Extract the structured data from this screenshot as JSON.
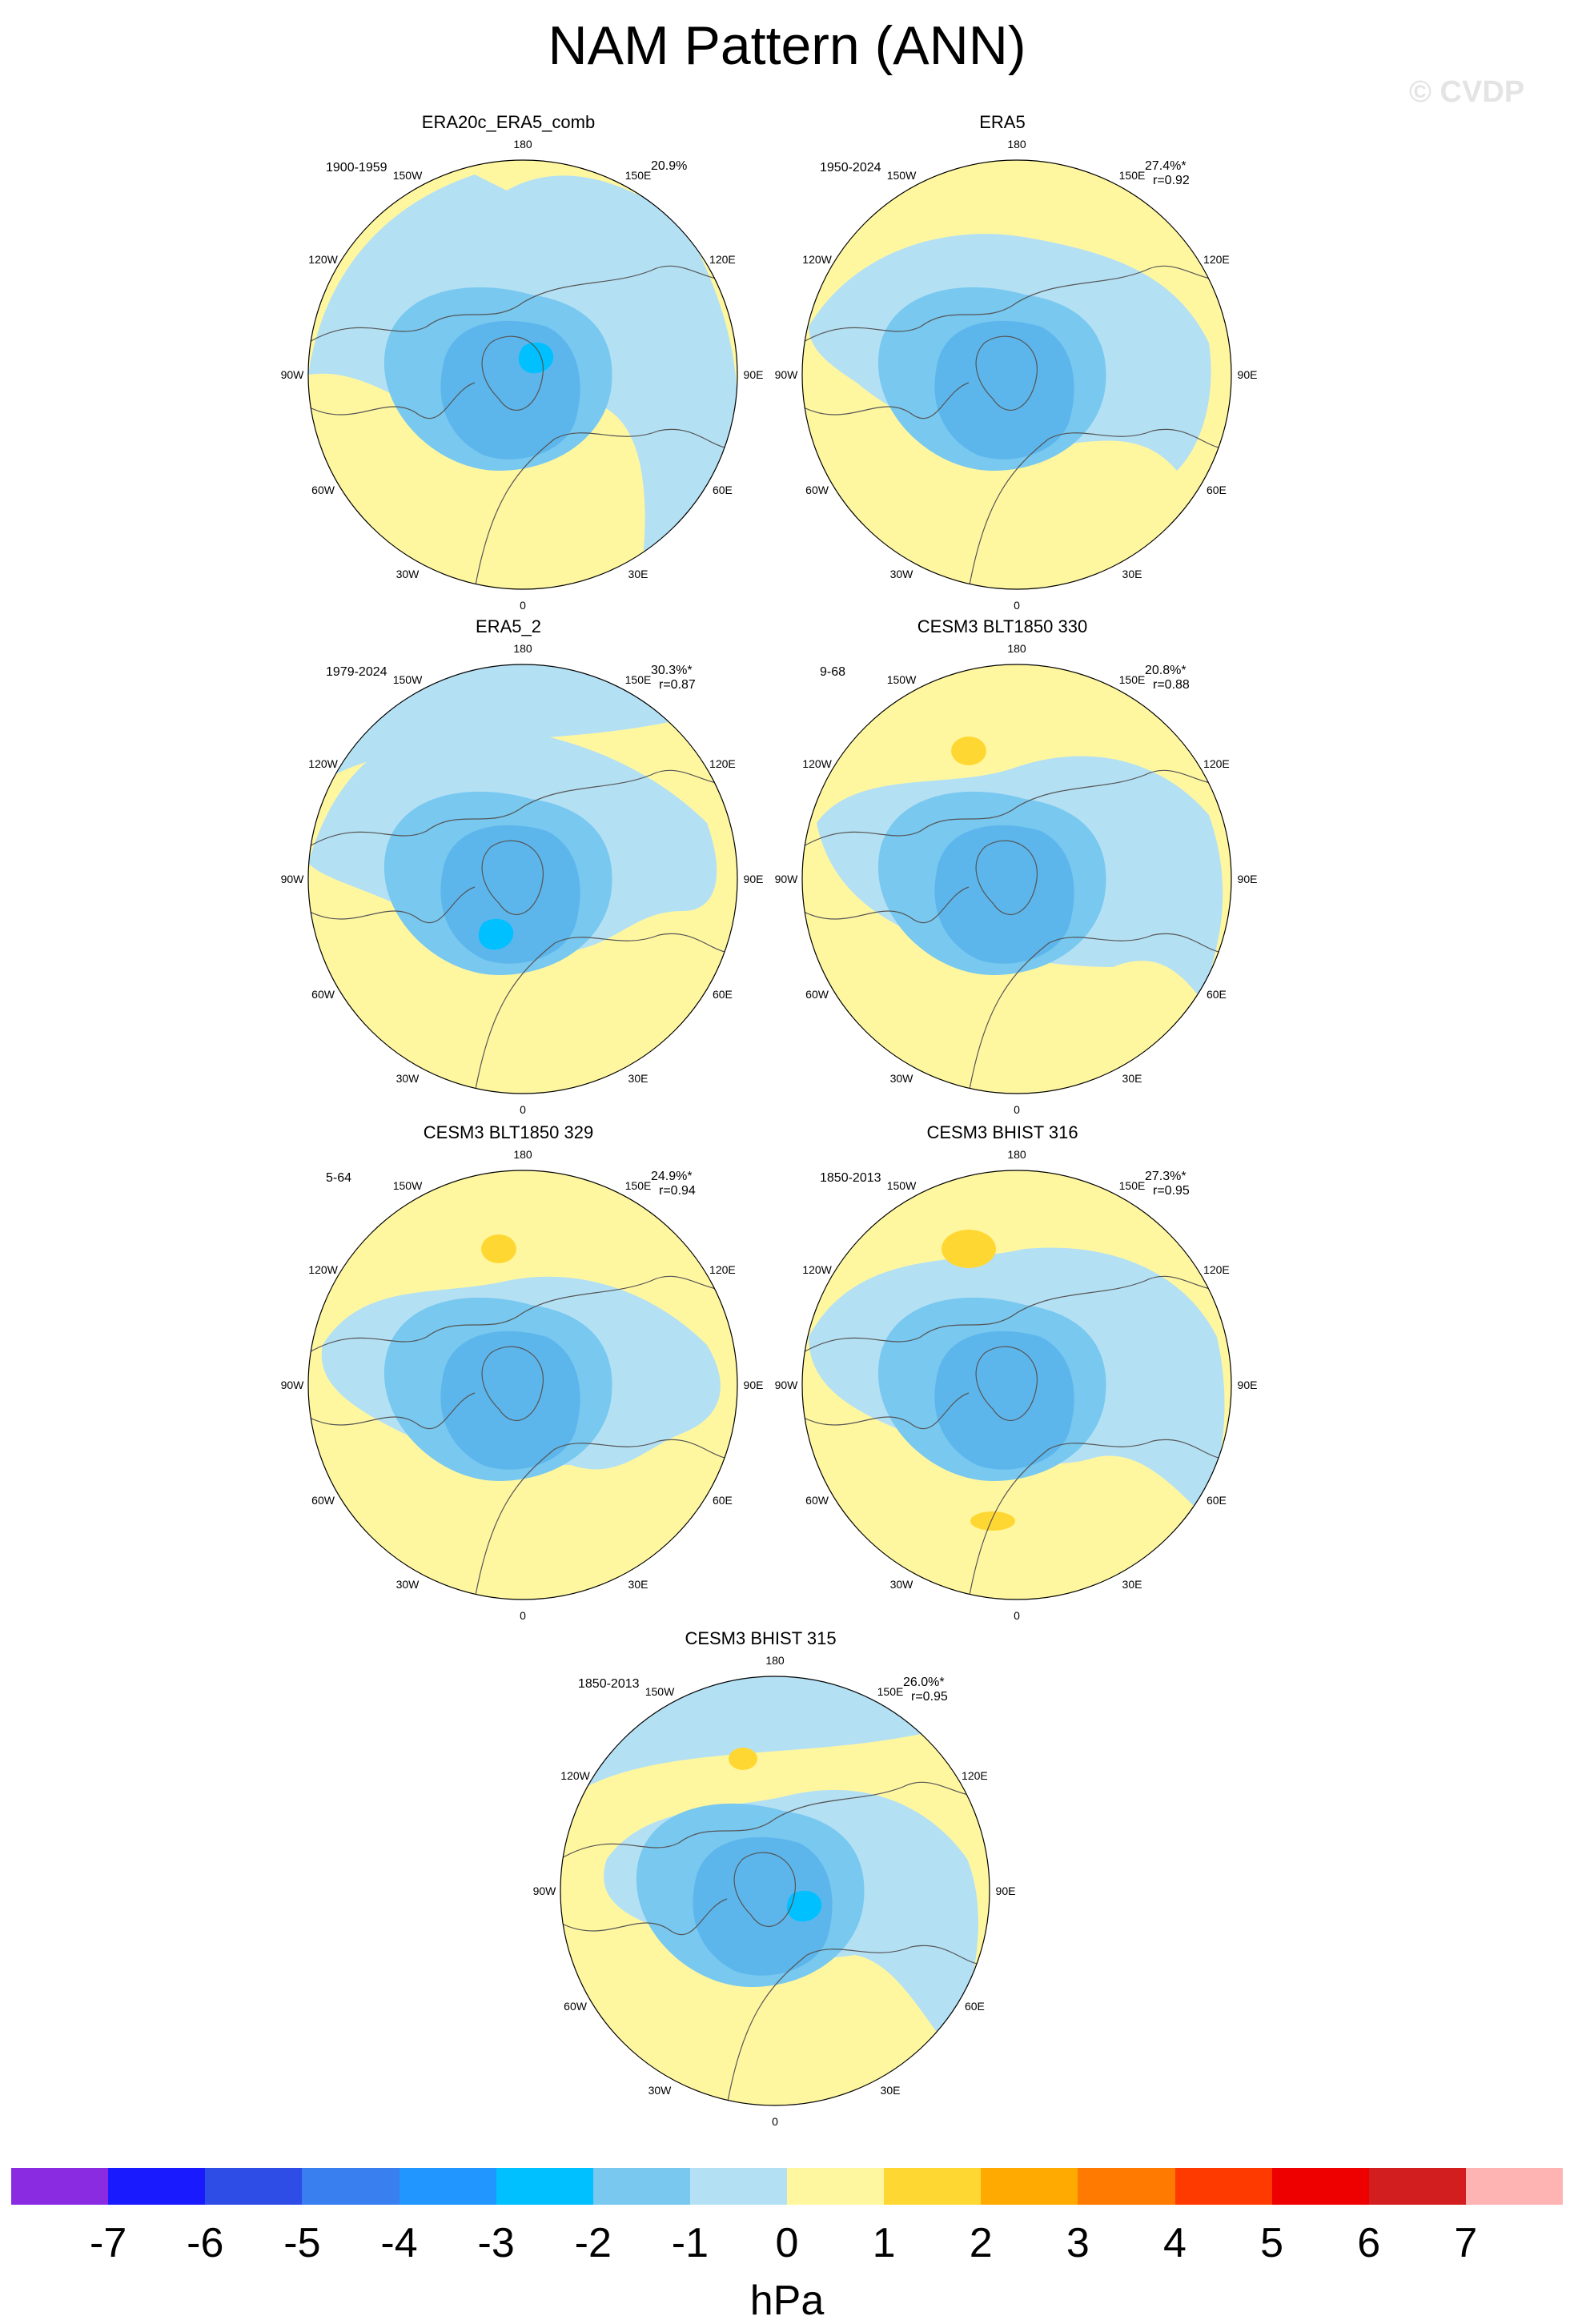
{
  "title": "NAM Pattern (ANN)",
  "watermark": "© CVDP",
  "lon_labels": [
    "180",
    "150E",
    "120E",
    "90E",
    "60E",
    "30E",
    "0",
    "30W",
    "60W",
    "90W",
    "120W",
    "150W"
  ],
  "panels": [
    {
      "title": "ERA20c_ERA5_comb",
      "period": "1900-1959",
      "pct": "20.9%",
      "r": ""
    },
    {
      "title": "ERA5",
      "period": "1950-2024",
      "pct": "27.4%*",
      "r": "r=0.92"
    },
    {
      "title": "ERA5_2",
      "period": "1979-2024",
      "pct": "30.3%*",
      "r": "r=0.87"
    },
    {
      "title": "CESM3 BLT1850 330",
      "period": "9-68",
      "pct": "20.8%*",
      "r": "r=0.88"
    },
    {
      "title": "CESM3 BLT1850 329",
      "period": "5-64",
      "pct": "24.9%*",
      "r": "r=0.94"
    },
    {
      "title": "CESM3 BHIST 316",
      "period": "1850-2013",
      "pct": "27.3%*",
      "r": "r=0.95"
    },
    {
      "title": "CESM3 BHIST 315",
      "period": "1850-2013",
      "pct": "26.0%*",
      "r": "r=0.95"
    }
  ],
  "colorbar": {
    "units": "hPa",
    "ticks": [
      "-7",
      "-6",
      "-5",
      "-4",
      "-3",
      "-2",
      "-1",
      "0",
      "1",
      "2",
      "3",
      "4",
      "5",
      "6",
      "7"
    ],
    "colors": [
      "#8a2be2",
      "#1a1aff",
      "#2e4de6",
      "#3a7ff0",
      "#2196ff",
      "#00c0ff",
      "#78c8f0",
      "#b4e0f4",
      "#fff7a0",
      "#ffd732",
      "#ffaa00",
      "#ff7a00",
      "#ff3a00",
      "#ee0000",
      "#d21e1e",
      "#ffb4b4"
    ]
  },
  "fill_colors": {
    "light_blue": "#b4e0f4",
    "mid_blue": "#78c8f0",
    "bright_blue": "#00c0ff",
    "yellow": "#fff7a0",
    "gold": "#ffd732",
    "orange": "#ffaa00"
  }
}
